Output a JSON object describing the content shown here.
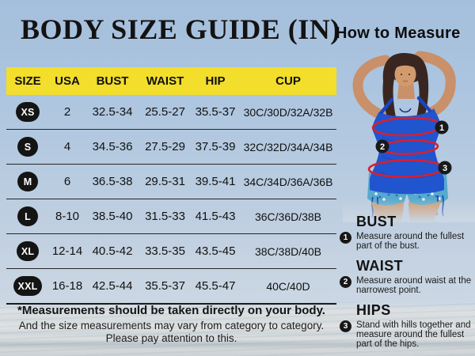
{
  "page": {
    "title": "BODY SIZE GUIDE (IN)",
    "how_to_measure": "How to Measure"
  },
  "table": {
    "headers": [
      "SIZE",
      "USA",
      "BUST",
      "WAIST",
      "HIP",
      "CUP"
    ],
    "rows": [
      {
        "size": "XS",
        "usa": "2",
        "bust": "32.5-34",
        "waist": "25.5-27",
        "hip": "35.5-37",
        "cup": "30C/30D/32A/32B"
      },
      {
        "size": "S",
        "usa": "4",
        "bust": "34.5-36",
        "waist": "27.5-29",
        "hip": "37.5-39",
        "cup": "32C/32D/34A/34B"
      },
      {
        "size": "M",
        "usa": "6",
        "bust": "36.5-38",
        "waist": "29.5-31",
        "hip": "39.5-41",
        "cup": "34C/34D/36A/36B"
      },
      {
        "size": "L",
        "usa": "8-10",
        "bust": "38.5-40",
        "waist": "31.5-33",
        "hip": "41.5-43",
        "cup": "36C/36D/38B"
      },
      {
        "size": "XL",
        "usa": "12-14",
        "bust": "40.5-42",
        "waist": "33.5-35",
        "hip": "43.5-45",
        "cup": "38C/38D/40B"
      },
      {
        "size": "XXL",
        "usa": "16-18",
        "bust": "42.5-44",
        "waist": "35.5-37",
        "hip": "45.5-47",
        "cup": "40C/40D"
      }
    ]
  },
  "chart_data": {
    "type": "table",
    "title": "BODY SIZE GUIDE (IN)",
    "columns": [
      "SIZE",
      "USA",
      "BUST",
      "WAIST",
      "HIP",
      "CUP"
    ],
    "rows": [
      [
        "XS",
        "2",
        "32.5-34",
        "25.5-27",
        "35.5-37",
        "30C/30D/32A/32B"
      ],
      [
        "S",
        "4",
        "34.5-36",
        "27.5-29",
        "37.5-39",
        "32C/32D/34A/34B"
      ],
      [
        "M",
        "6",
        "36.5-38",
        "29.5-31",
        "39.5-41",
        "34C/34D/36A/36B"
      ],
      [
        "L",
        "8-10",
        "38.5-40",
        "31.5-33",
        "41.5-43",
        "36C/36D/38B"
      ],
      [
        "XL",
        "12-14",
        "40.5-42",
        "33.5-35",
        "43.5-45",
        "38C/38D/40B"
      ],
      [
        "XXL",
        "16-18",
        "42.5-44",
        "35.5-37",
        "45.5-47",
        "40C/40D"
      ]
    ]
  },
  "footer": {
    "line1": "*Measurements should be taken directly on your body.",
    "line2": "And the size measurements may vary from category to category.",
    "line3": "Please pay attention to this."
  },
  "measure_sections": [
    {
      "num": "1",
      "title": "BUST",
      "desc": "Measure around the fullest part of the bust."
    },
    {
      "num": "2",
      "title": "WAIST",
      "desc": "Measure around waist at the narrowest point."
    },
    {
      "num": "3",
      "title": "HIPS",
      "desc": "Stand with hills together and measure around the fullest part of the hips."
    }
  ],
  "figure": {
    "marker_labels": [
      "1",
      "2",
      "3"
    ]
  },
  "colors": {
    "header_yellow": "#F2DE2B",
    "badge_black": "#141414",
    "measure_red": "#D6202F",
    "swimsuit_blue": "#2154CF",
    "shorts_teal": "#57A9CD",
    "sky_blue": "#A8C2DE"
  }
}
